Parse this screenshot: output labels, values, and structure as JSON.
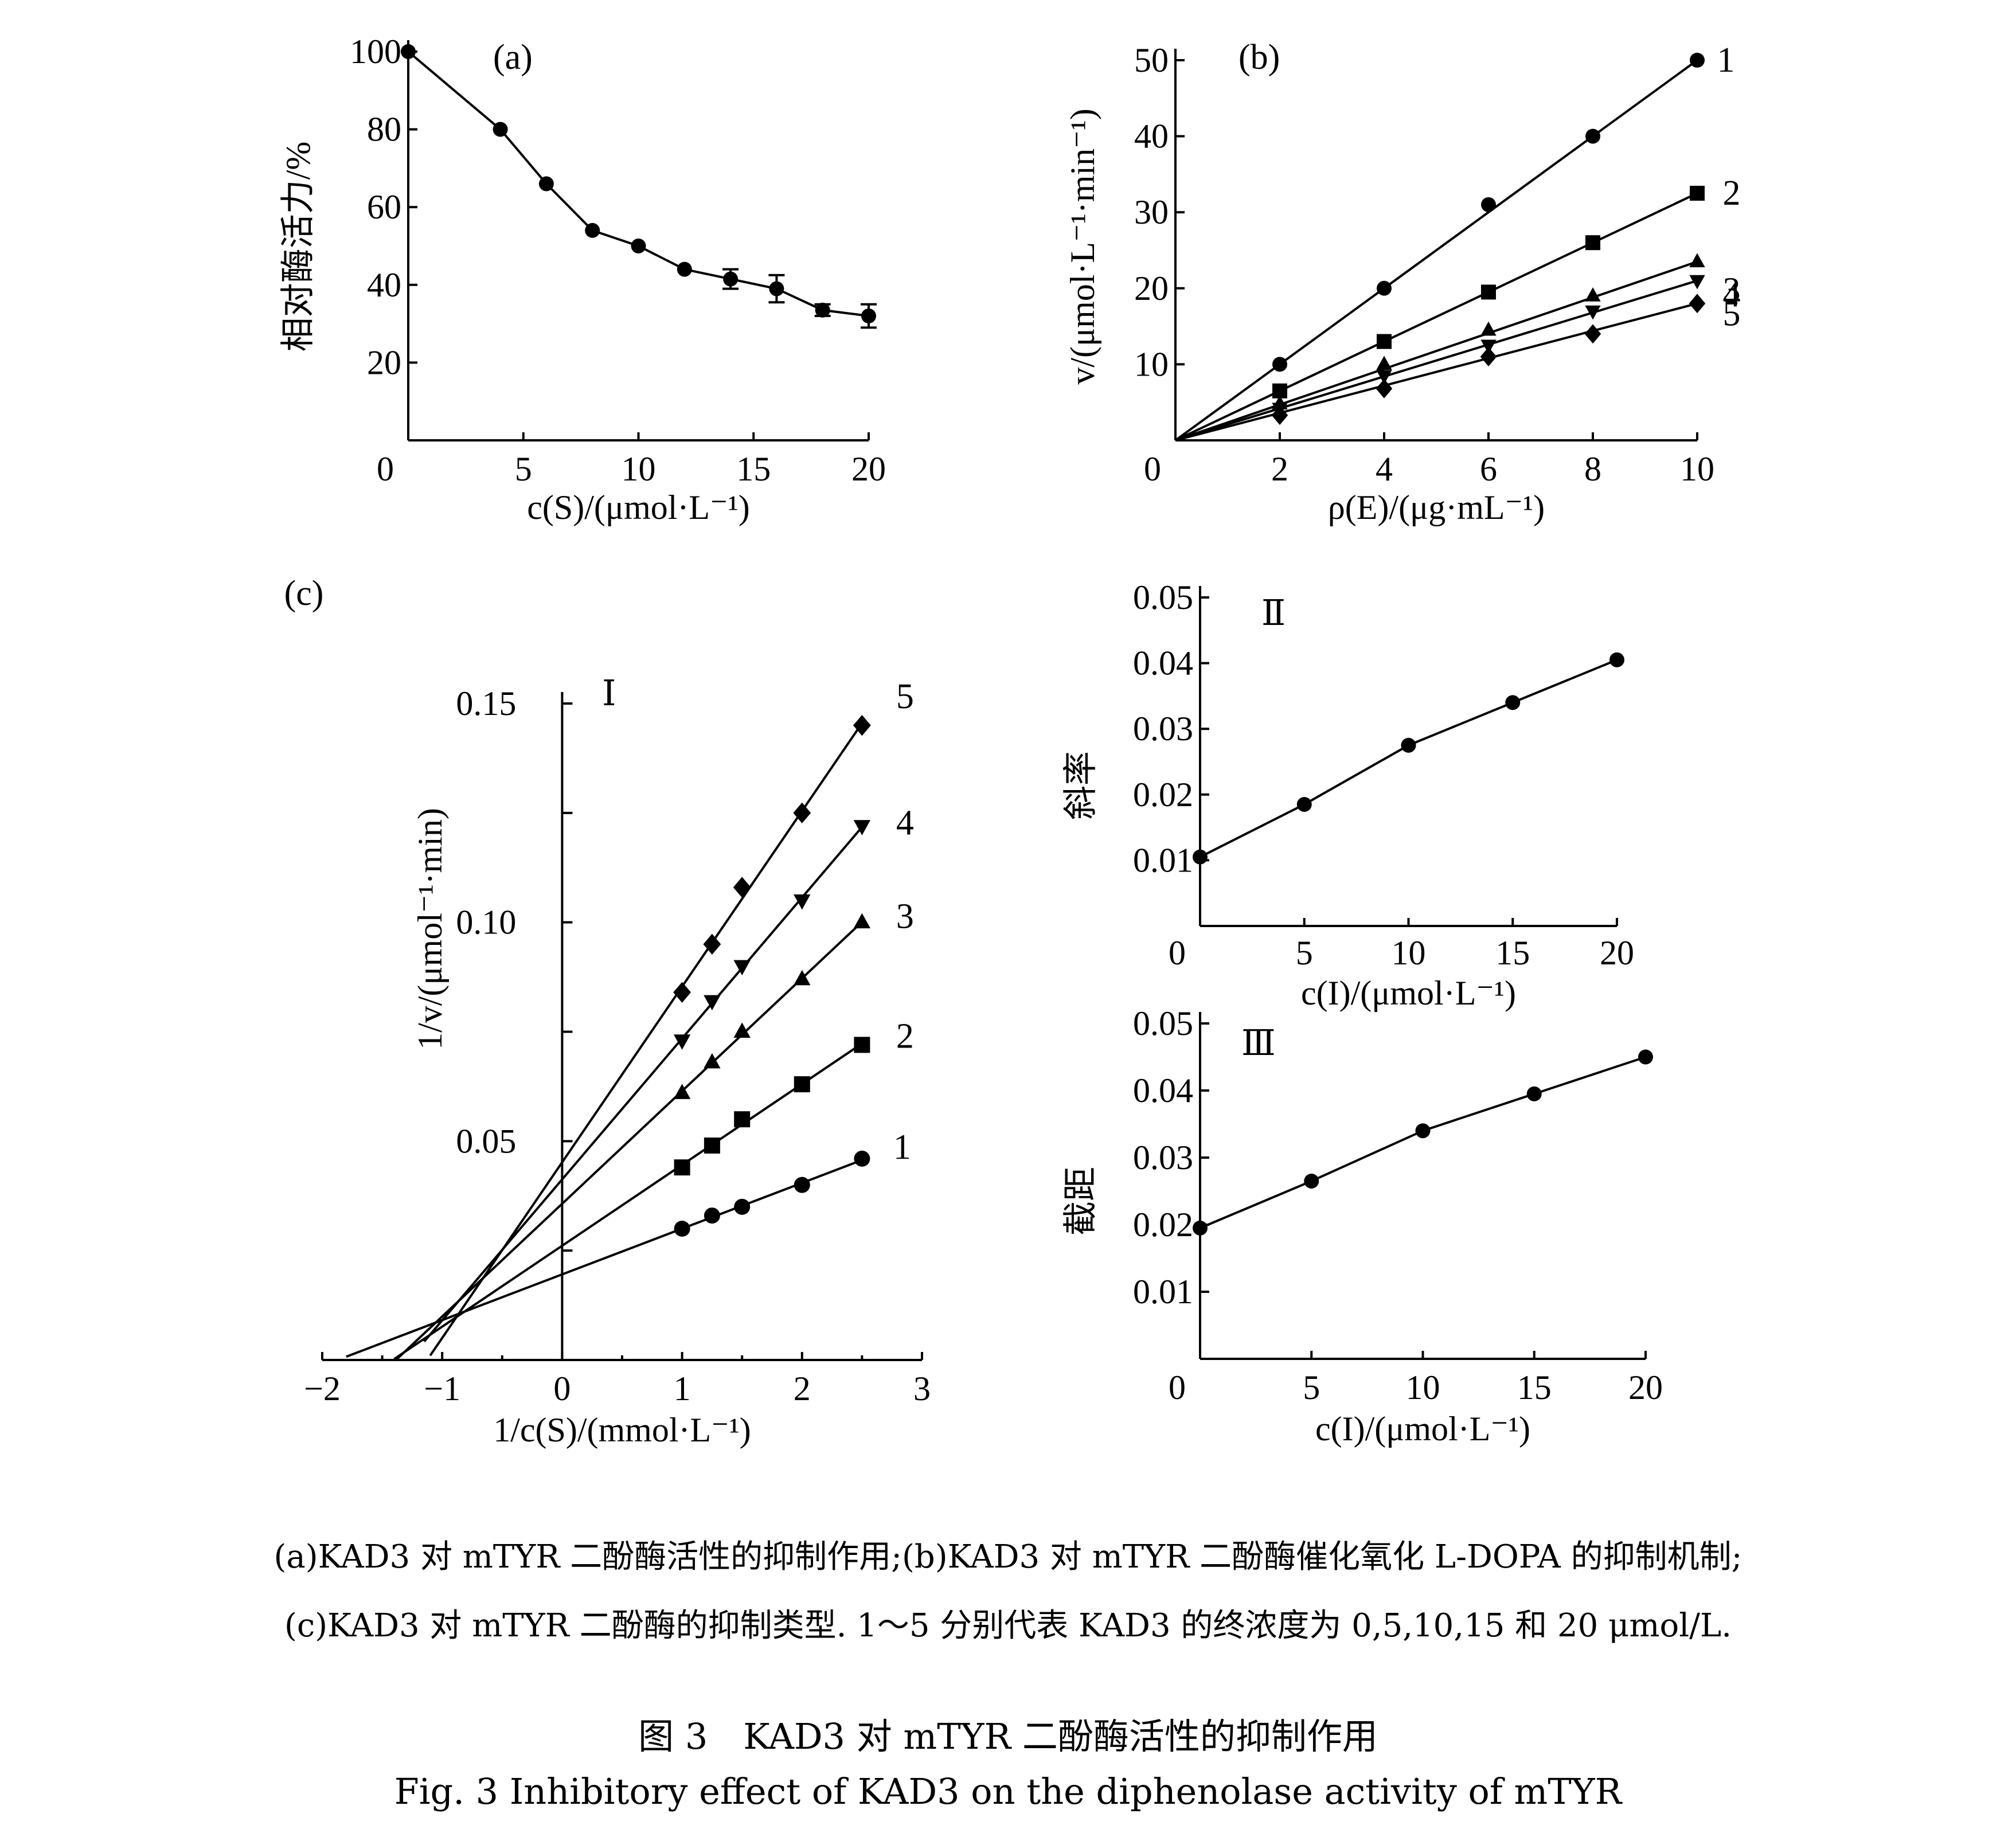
{
  "chart_data": [
    {
      "id": "a",
      "type": "line",
      "panel_label": "(a)",
      "xlabel": "c(S)/(μmol·L⁻¹)",
      "ylabel": "相对酶活力/%",
      "xlim": [
        0,
        20
      ],
      "ylim": [
        0,
        100
      ],
      "xticks": [
        "0",
        "5",
        "10",
        "15",
        "20"
      ],
      "yticks": [
        "20",
        "40",
        "60",
        "80",
        "100"
      ],
      "series": [
        {
          "marker": "circle",
          "x": [
            0,
            4,
            6,
            8,
            10,
            12,
            14,
            16,
            18,
            20
          ],
          "y": [
            100,
            80,
            66,
            54,
            50,
            44,
            41.5,
            39,
            33.5,
            32
          ],
          "err": [
            0,
            0,
            0,
            0,
            0,
            0,
            2.5,
            3.5,
            1.5,
            3
          ]
        }
      ]
    },
    {
      "id": "b",
      "type": "line",
      "panel_label": "(b)",
      "xlabel": "ρ(E)/(μg·mL⁻¹)",
      "ylabel": "v/(μmol·L⁻¹·min⁻¹)",
      "xlim": [
        0,
        10
      ],
      "ylim": [
        0,
        50
      ],
      "xticks": [
        "0",
        "2",
        "4",
        "6",
        "8",
        "10"
      ],
      "yticks": [
        "10",
        "20",
        "30",
        "40",
        "50"
      ],
      "series": [
        {
          "name": "1",
          "marker": "circle",
          "x": [
            2,
            4,
            6,
            8,
            10
          ],
          "y": [
            10,
            20,
            31,
            40,
            50
          ]
        },
        {
          "name": "2",
          "marker": "square",
          "x": [
            2,
            4,
            6,
            8,
            10
          ],
          "y": [
            6.5,
            13,
            19.5,
            26,
            32.5
          ]
        },
        {
          "name": "3",
          "marker": "triangle-up",
          "x": [
            2,
            4,
            6,
            8,
            10
          ],
          "y": [
            4.8,
            10,
            14.5,
            19,
            23.5
          ]
        },
        {
          "name": "4",
          "marker": "triangle-down",
          "x": [
            2,
            4,
            6,
            8,
            10
          ],
          "y": [
            4.2,
            8.5,
            12.5,
            17,
            21
          ]
        },
        {
          "name": "5",
          "marker": "diamond",
          "x": [
            2,
            4,
            6,
            8,
            10
          ],
          "y": [
            3.3,
            6.8,
            11,
            14,
            18
          ]
        }
      ]
    },
    {
      "id": "c1",
      "type": "line",
      "panel_label": "(c)",
      "roman": "Ⅰ",
      "xlabel": "1/c(S)/(mmol·L⁻¹)",
      "ylabel": "1/v/(μmol⁻¹·min)",
      "xlim": [
        -2,
        3
      ],
      "ylim": [
        0,
        0.15
      ],
      "xticks": [
        "−2",
        "−1",
        "0",
        "1",
        "2",
        "3"
      ],
      "yticks": [
        "0.05",
        "0.10",
        "0.15"
      ],
      "series": [
        {
          "name": "1",
          "marker": "circle",
          "x": [
            1,
            1.25,
            1.5,
            2,
            2.5
          ],
          "y": [
            0.03,
            0.033,
            0.035,
            0.04,
            0.046
          ],
          "line_from": -1.8
        },
        {
          "name": "2",
          "marker": "square",
          "x": [
            1,
            1.25,
            1.5,
            2,
            2.5
          ],
          "y": [
            0.044,
            0.049,
            0.055,
            0.063,
            0.072
          ],
          "line_from": -1.4
        },
        {
          "name": "3",
          "marker": "triangle-up",
          "x": [
            1,
            1.25,
            1.5,
            2,
            2.5
          ],
          "y": [
            0.061,
            0.068,
            0.075,
            0.087,
            0.1
          ],
          "line_from": -1.4
        },
        {
          "name": "4",
          "marker": "triangle-down",
          "x": [
            1,
            1.25,
            1.5,
            2,
            2.5
          ],
          "y": [
            0.073,
            0.082,
            0.09,
            0.105,
            0.122
          ],
          "line_from": -1.15
        },
        {
          "name": "5",
          "marker": "diamond",
          "x": [
            1,
            1.25,
            1.5,
            2,
            2.5
          ],
          "y": [
            0.084,
            0.095,
            0.108,
            0.125,
            0.145
          ],
          "line_from": -1.1
        }
      ]
    },
    {
      "id": "c2",
      "type": "line",
      "roman": "Ⅱ",
      "xlabel": "c(I)/(μmol·L⁻¹)",
      "ylabel": "斜率",
      "xlim": [
        0,
        20
      ],
      "ylim": [
        0,
        0.05
      ],
      "xticks": [
        "0",
        "5",
        "10",
        "15",
        "20"
      ],
      "yticks": [
        "0.01",
        "0.02",
        "0.03",
        "0.04",
        "0.05"
      ],
      "series": [
        {
          "marker": "circle",
          "x": [
            0,
            5,
            10,
            15,
            20
          ],
          "y": [
            0.0105,
            0.0185,
            0.0275,
            0.034,
            0.0405
          ]
        }
      ]
    },
    {
      "id": "c3",
      "type": "line",
      "roman": "Ⅲ",
      "xlabel": "c(I)/(μmol·L⁻¹)",
      "ylabel": "截距",
      "xlim": [
        0,
        20
      ],
      "ylim": [
        0,
        0.05
      ],
      "xticks": [
        "0",
        "5",
        "10",
        "15",
        "20"
      ],
      "yticks": [
        "0.01",
        "0.02",
        "0.03",
        "0.04",
        "0.05"
      ],
      "series": [
        {
          "marker": "circle",
          "x": [
            0,
            5,
            10,
            15,
            20
          ],
          "y": [
            0.0195,
            0.0265,
            0.034,
            0.0395,
            0.045
          ]
        }
      ]
    }
  ],
  "caption": {
    "line1": "(a)KAD3 对 mTYR 二酚酶活性的抑制作用;(b)KAD3 对 mTYR 二酚酶催化氧化 L-DOPA 的抑制机制;",
    "line2": "(c)KAD3 对 mTYR 二酚酶的抑制类型. 1～5 分别代表 KAD3 的终浓度为 0,5,10,15 和 20 μmol/L.",
    "title_cn": "图 3　KAD3 对 mTYR 二酚酶活性的抑制作用",
    "title_en": "Fig. 3  Inhibitory effect of KAD3 on the diphenolase activity of mTYR"
  }
}
